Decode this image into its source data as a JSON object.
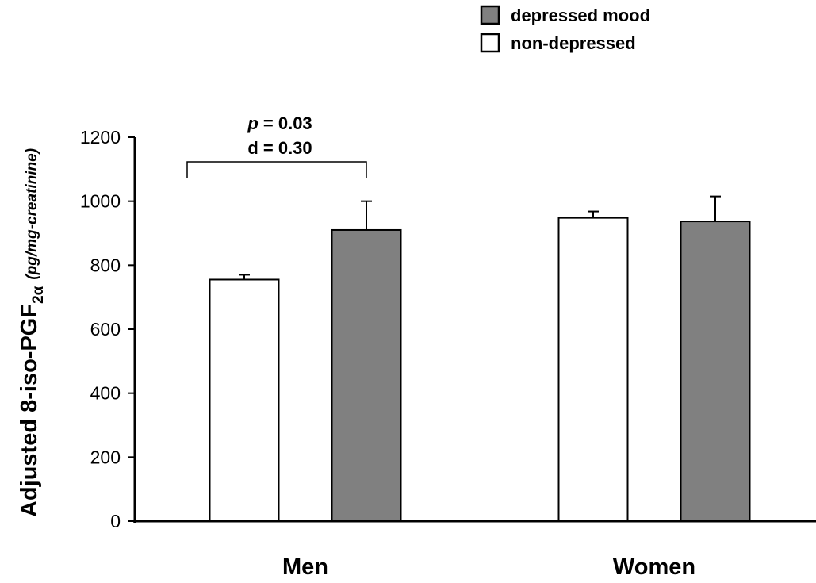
{
  "chart_data": {
    "type": "bar",
    "categories": [
      "Men",
      "Women"
    ],
    "series": [
      {
        "name": "non-depressed",
        "color": "#ffffff",
        "values": [
          755,
          948
        ],
        "error_plus": [
          15,
          20
        ]
      },
      {
        "name": "depressed mood",
        "color": "#808080",
        "values": [
          910,
          937
        ],
        "error_plus": [
          90,
          78
        ]
      }
    ],
    "ylabel": {
      "main": "Adjusted 8-iso-PGF",
      "subscript": "2α",
      "unit": "(pg/mg-creatinine)"
    },
    "ylim": [
      0,
      1200
    ],
    "yticks": [
      0,
      200,
      400,
      600,
      800,
      1000,
      1200
    ],
    "legend_order": [
      "depressed mood",
      "non-depressed"
    ],
    "legend_position": "top-right",
    "grid": false,
    "annotation": {
      "category": "Men",
      "p_label": "p",
      "p_text": " = 0.03",
      "d_text": "d = 0.30"
    }
  }
}
